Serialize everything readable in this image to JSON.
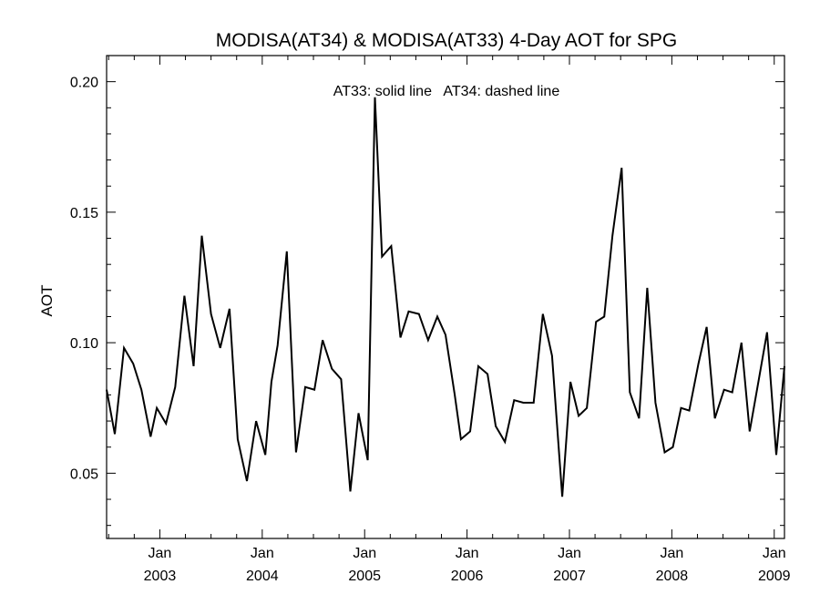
{
  "chart_data": {
    "type": "line",
    "title": "MODISA(AT34) & MODISA(AT33) 4-Day AOT for SPG",
    "annotation": "AT33: solid line   AT34: dashed line",
    "xlabel": "",
    "ylabel": "AOT",
    "xlim": [
      2002.48,
      2009.1
    ],
    "ylim": [
      0.025,
      0.21
    ],
    "y_ticks": [
      0.05,
      0.1,
      0.15,
      0.2
    ],
    "y_tick_labels": [
      "0.05",
      "0.10",
      "0.15",
      "0.20"
    ],
    "x_ticks": [
      2003,
      2004,
      2005,
      2006,
      2007,
      2008,
      2009
    ],
    "x_tick_labels": [
      {
        "month": "Jan",
        "year": "2003"
      },
      {
        "month": "Jan",
        "year": "2004"
      },
      {
        "month": "Jan",
        "year": "2005"
      },
      {
        "month": "Jan",
        "year": "2006"
      },
      {
        "month": "Jan",
        "year": "2007"
      },
      {
        "month": "Jan",
        "year": "2008"
      },
      {
        "month": "Jan",
        "year": "2009"
      }
    ],
    "grid": false,
    "series": [
      {
        "style": "solid",
        "x": [
          2002.48,
          2002.56,
          2002.65,
          2002.74,
          2002.82,
          2002.91,
          2002.97,
          2003.06,
          2003.15,
          2003.24,
          2003.33,
          2003.41,
          2003.5,
          2003.59,
          2003.68,
          2003.76,
          2003.85,
          2003.94,
          2004.03,
          2004.09,
          2004.15,
          2004.24,
          2004.33,
          2004.42,
          2004.51,
          2004.59,
          2004.68,
          2004.77,
          2004.86,
          2004.94,
          2005.03,
          2005.1,
          2005.17,
          2005.26,
          2005.35,
          2005.43,
          2005.53,
          2005.62,
          2005.71,
          2005.79,
          2005.88,
          2005.94,
          2006.03,
          2006.11,
          2006.2,
          2006.28,
          2006.37,
          2006.46,
          2006.55,
          2006.65,
          2006.74,
          2006.83,
          2006.93,
          2007.01,
          2007.09,
          2007.17,
          2007.26,
          2007.34,
          2007.42,
          2007.51,
          2007.59,
          2007.68,
          2007.76,
          2007.84,
          2007.93,
          2008.01,
          2008.09,
          2008.17,
          2008.26,
          2008.34,
          2008.42,
          2008.51,
          2008.59,
          2008.68,
          2008.76,
          2008.85,
          2008.93,
          2009.02,
          2009.1
        ],
        "values": [
          0.082,
          0.065,
          0.098,
          0.092,
          0.082,
          0.064,
          0.075,
          0.069,
          0.083,
          0.118,
          0.091,
          0.141,
          0.111,
          0.098,
          0.113,
          0.063,
          0.047,
          0.07,
          0.057,
          0.085,
          0.099,
          0.135,
          0.058,
          0.083,
          0.082,
          0.101,
          0.09,
          0.086,
          0.043,
          0.073,
          0.055,
          0.194,
          0.133,
          0.137,
          0.102,
          0.112,
          0.111,
          0.101,
          0.11,
          0.103,
          0.08,
          0.063,
          0.066,
          0.091,
          0.088,
          0.068,
          0.062,
          0.078,
          0.077,
          0.077,
          0.111,
          0.095,
          0.041,
          0.085,
          0.072,
          0.075,
          0.108,
          0.11,
          0.141,
          0.167,
          0.081,
          0.071,
          0.121,
          0.077,
          0.058,
          0.06,
          0.075,
          0.074,
          0.092,
          0.106,
          0.071,
          0.082,
          0.081,
          0.1,
          0.066,
          0.086,
          0.104,
          0.057,
          0.091
        ]
      }
    ]
  }
}
